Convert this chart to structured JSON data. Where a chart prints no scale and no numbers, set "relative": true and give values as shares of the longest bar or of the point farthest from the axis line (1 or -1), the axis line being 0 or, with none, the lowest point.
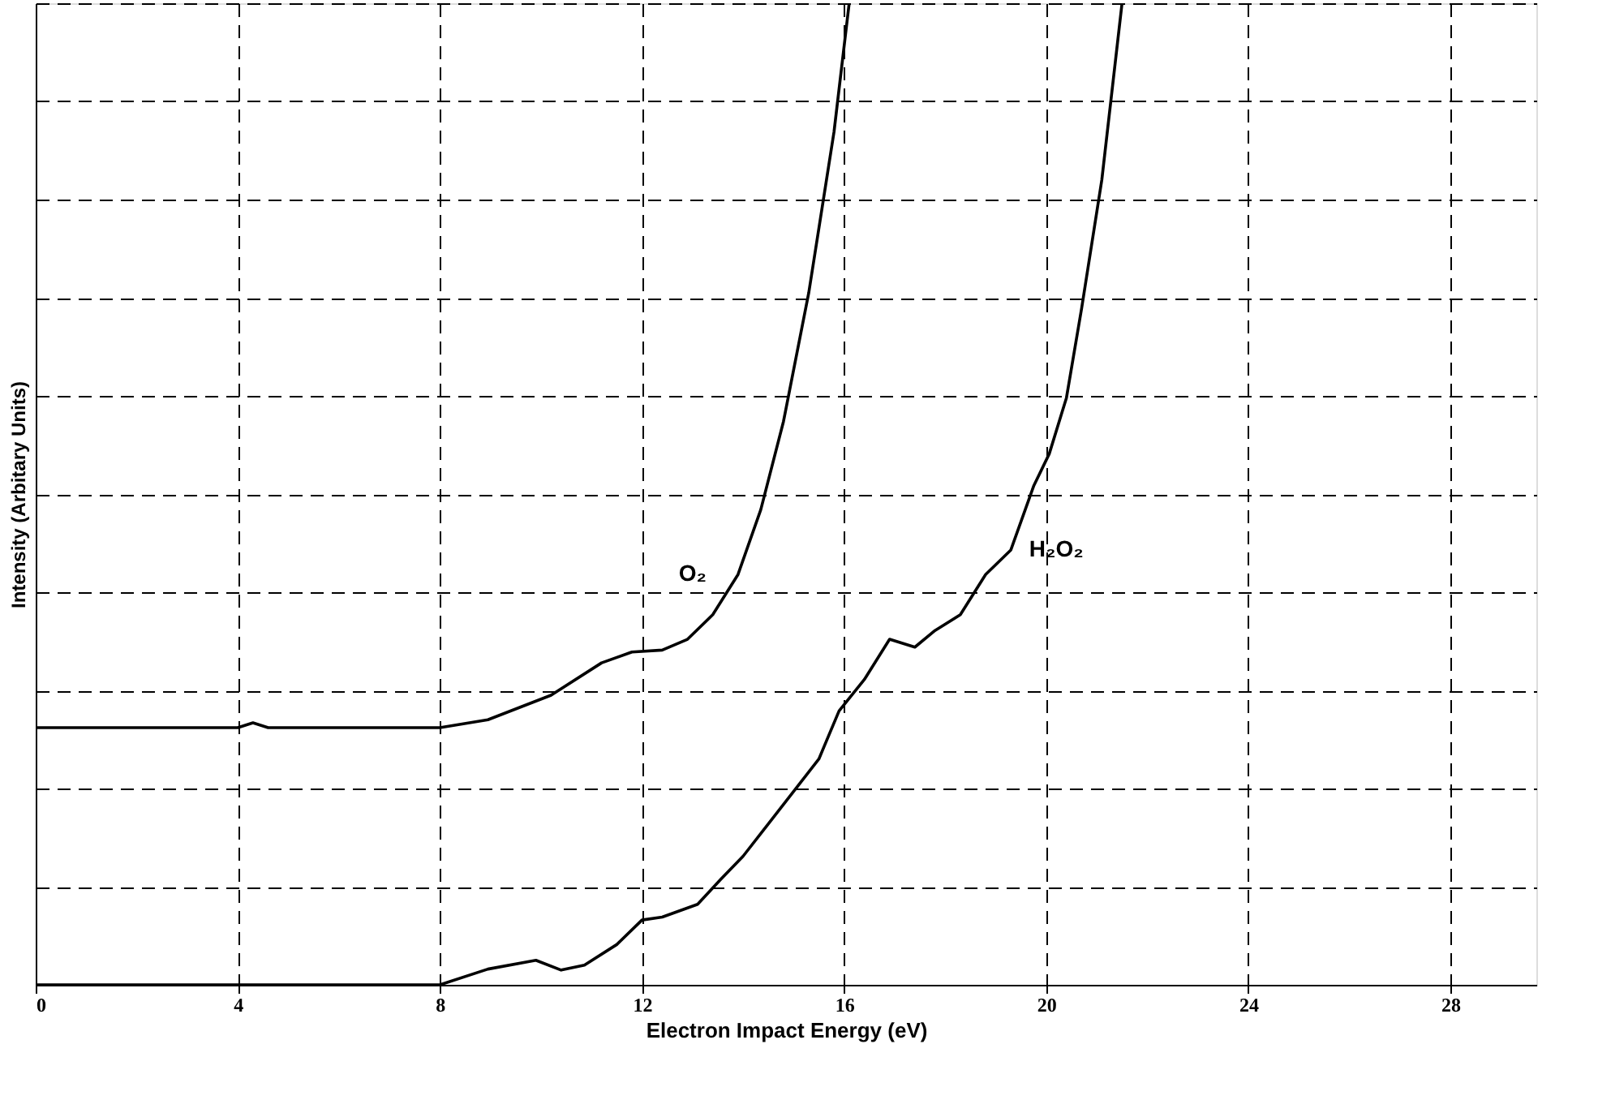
{
  "chart_data": {
    "type": "line",
    "relative": true,
    "xlabel": "Electron Impact Energy (eV)",
    "ylabel": "Intensity (Arbitary Units)",
    "xlim": [
      0,
      29.7
    ],
    "xticks": [
      0,
      4,
      8,
      12,
      16,
      20,
      24,
      28
    ],
    "grid": true,
    "line_style": "solid",
    "marker": "none",
    "tick_labels": "x",
    "series": [
      {
        "name": "O₂",
        "color": "#000000",
        "x": [
          0,
          4.0,
          4.3,
          4.6,
          8.0,
          8.95,
          10.2,
          11.2,
          11.8,
          12.4,
          12.9,
          13.4,
          13.9,
          14.35,
          14.8,
          15.3,
          15.8,
          16.1
        ],
        "values": [
          0.262,
          0.262,
          0.267,
          0.262,
          0.262,
          0.27,
          0.295,
          0.328,
          0.339,
          0.341,
          0.352,
          0.377,
          0.418,
          0.484,
          0.574,
          0.705,
          0.869,
          1.0
        ]
      },
      {
        "name": "H₂O₂",
        "color": "#000000",
        "x": [
          0,
          8.0,
          8.95,
          9.9,
          10.4,
          10.86,
          11.5,
          12.0,
          12.4,
          13.1,
          13.55,
          14.0,
          14.5,
          15.0,
          15.5,
          15.9,
          16.4,
          16.9,
          17.4,
          17.8,
          18.3,
          18.8,
          19.3,
          19.75,
          20.06,
          20.4,
          20.7,
          21.1,
          21.5
        ],
        "values": [
          0,
          0,
          0.016,
          0.025,
          0.015,
          0.02,
          0.041,
          0.066,
          0.069,
          0.082,
          0.107,
          0.131,
          0.164,
          0.197,
          0.23,
          0.279,
          0.311,
          0.352,
          0.344,
          0.361,
          0.377,
          0.418,
          0.443,
          0.508,
          0.541,
          0.598,
          0.689,
          0.82,
          1.0
        ]
      }
    ]
  }
}
